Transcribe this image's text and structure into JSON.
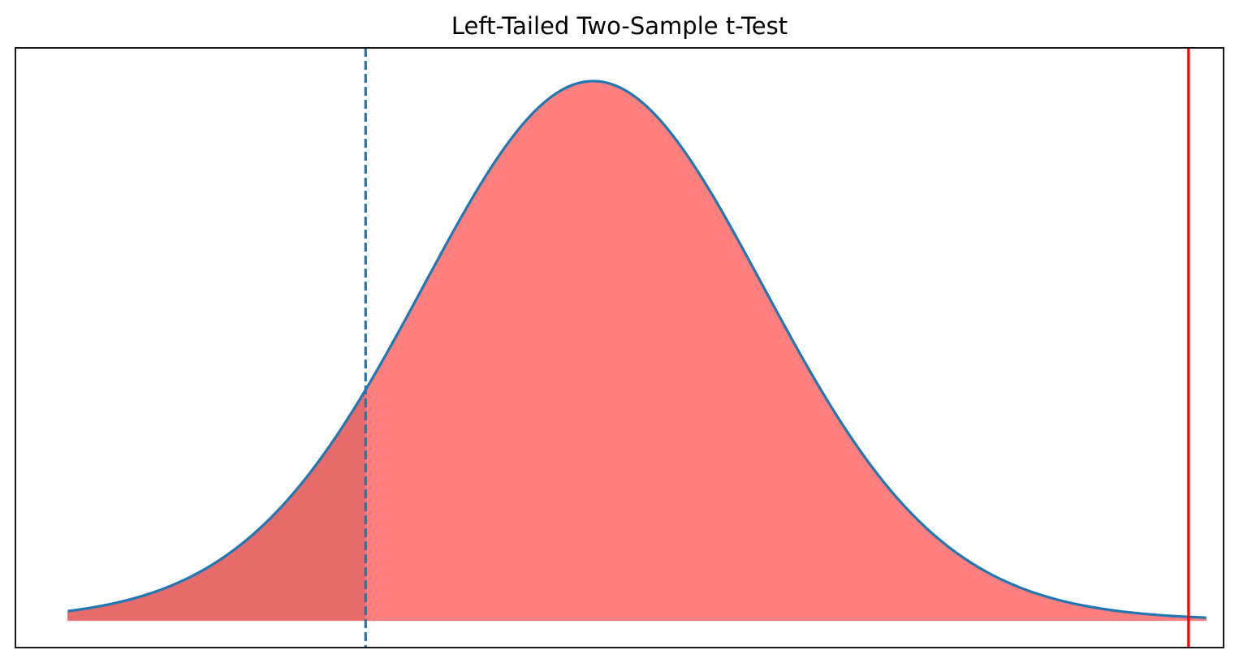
{
  "chart_data": {
    "type": "area",
    "title": "Left-Tailed Two-Sample t-Test",
    "xlabel": "",
    "ylabel": "",
    "xlim": [
      -3.3,
      3.6
    ],
    "ylim": [
      -0.02,
      0.42
    ],
    "grid": false,
    "distribution": {
      "name": "t",
      "df": 30,
      "x_range": [
        -3.0,
        3.5
      ]
    },
    "critical_value": -1.3,
    "test_statistic": 3.4,
    "fill_label": "",
    "colors": {
      "curve": "#1f77b4",
      "fill": "#ff7f7f",
      "tail_fill": "#e86b6b",
      "critical_line": "#1f77b4",
      "statistic_line": "#ff0000",
      "frame": "#000000"
    }
  }
}
